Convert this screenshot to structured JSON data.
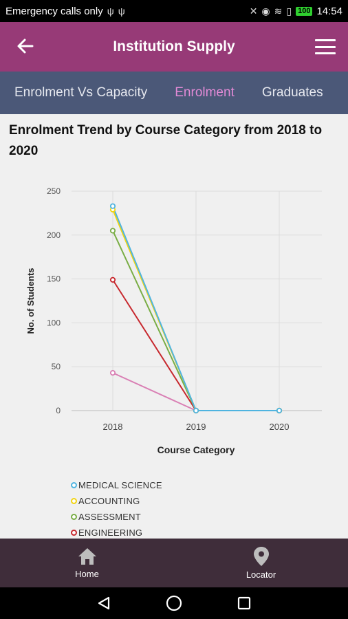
{
  "statusbar": {
    "carrier": "Emergency calls only",
    "battery": "100",
    "time": "14:54"
  },
  "appbar": {
    "title": "Institution Supply",
    "back_icon": "arrow-left-icon",
    "menu_icon": "hamburger-menu-icon"
  },
  "tabs": [
    {
      "label": "Enrolment Vs Capacity",
      "active": false
    },
    {
      "label": "Enrolment",
      "active": true
    },
    {
      "label": "Graduates",
      "active": false
    }
  ],
  "chart_title": "Enrolment Trend by Course Category from 2018 to 2020",
  "chart_data": {
    "type": "line",
    "title": "Enrolment Trend by Course Category from 2018 to 2020",
    "xlabel": "Course Category",
    "ylabel": "No. of Students",
    "categories": [
      "2018",
      "2019",
      "2020"
    ],
    "ylim": [
      0,
      250
    ],
    "yticks": [
      0,
      50,
      100,
      150,
      200,
      250
    ],
    "grid": true,
    "legend_position": "bottom-left",
    "series": [
      {
        "name": "MEDICAL SCIENCE",
        "color": "#4fb4e0",
        "values": [
          233,
          0,
          0
        ]
      },
      {
        "name": "ACCOUNTING",
        "color": "#f2d411",
        "values": [
          229,
          0,
          0
        ]
      },
      {
        "name": "ASSESSMENT",
        "color": "#79ad45",
        "values": [
          205,
          0,
          0
        ]
      },
      {
        "name": "ENGINEERING",
        "color": "#c7282e",
        "values": [
          149,
          0,
          0
        ]
      },
      {
        "name": "",
        "color": "#d97fb4",
        "values": [
          43,
          0,
          0
        ]
      }
    ]
  },
  "bottom_nav": [
    {
      "label": "Home",
      "icon": "home-icon"
    },
    {
      "label": "Locator",
      "icon": "location-pin-icon"
    }
  ],
  "system_nav": [
    "back-triangle-icon",
    "home-circle-icon",
    "recents-square-icon"
  ]
}
